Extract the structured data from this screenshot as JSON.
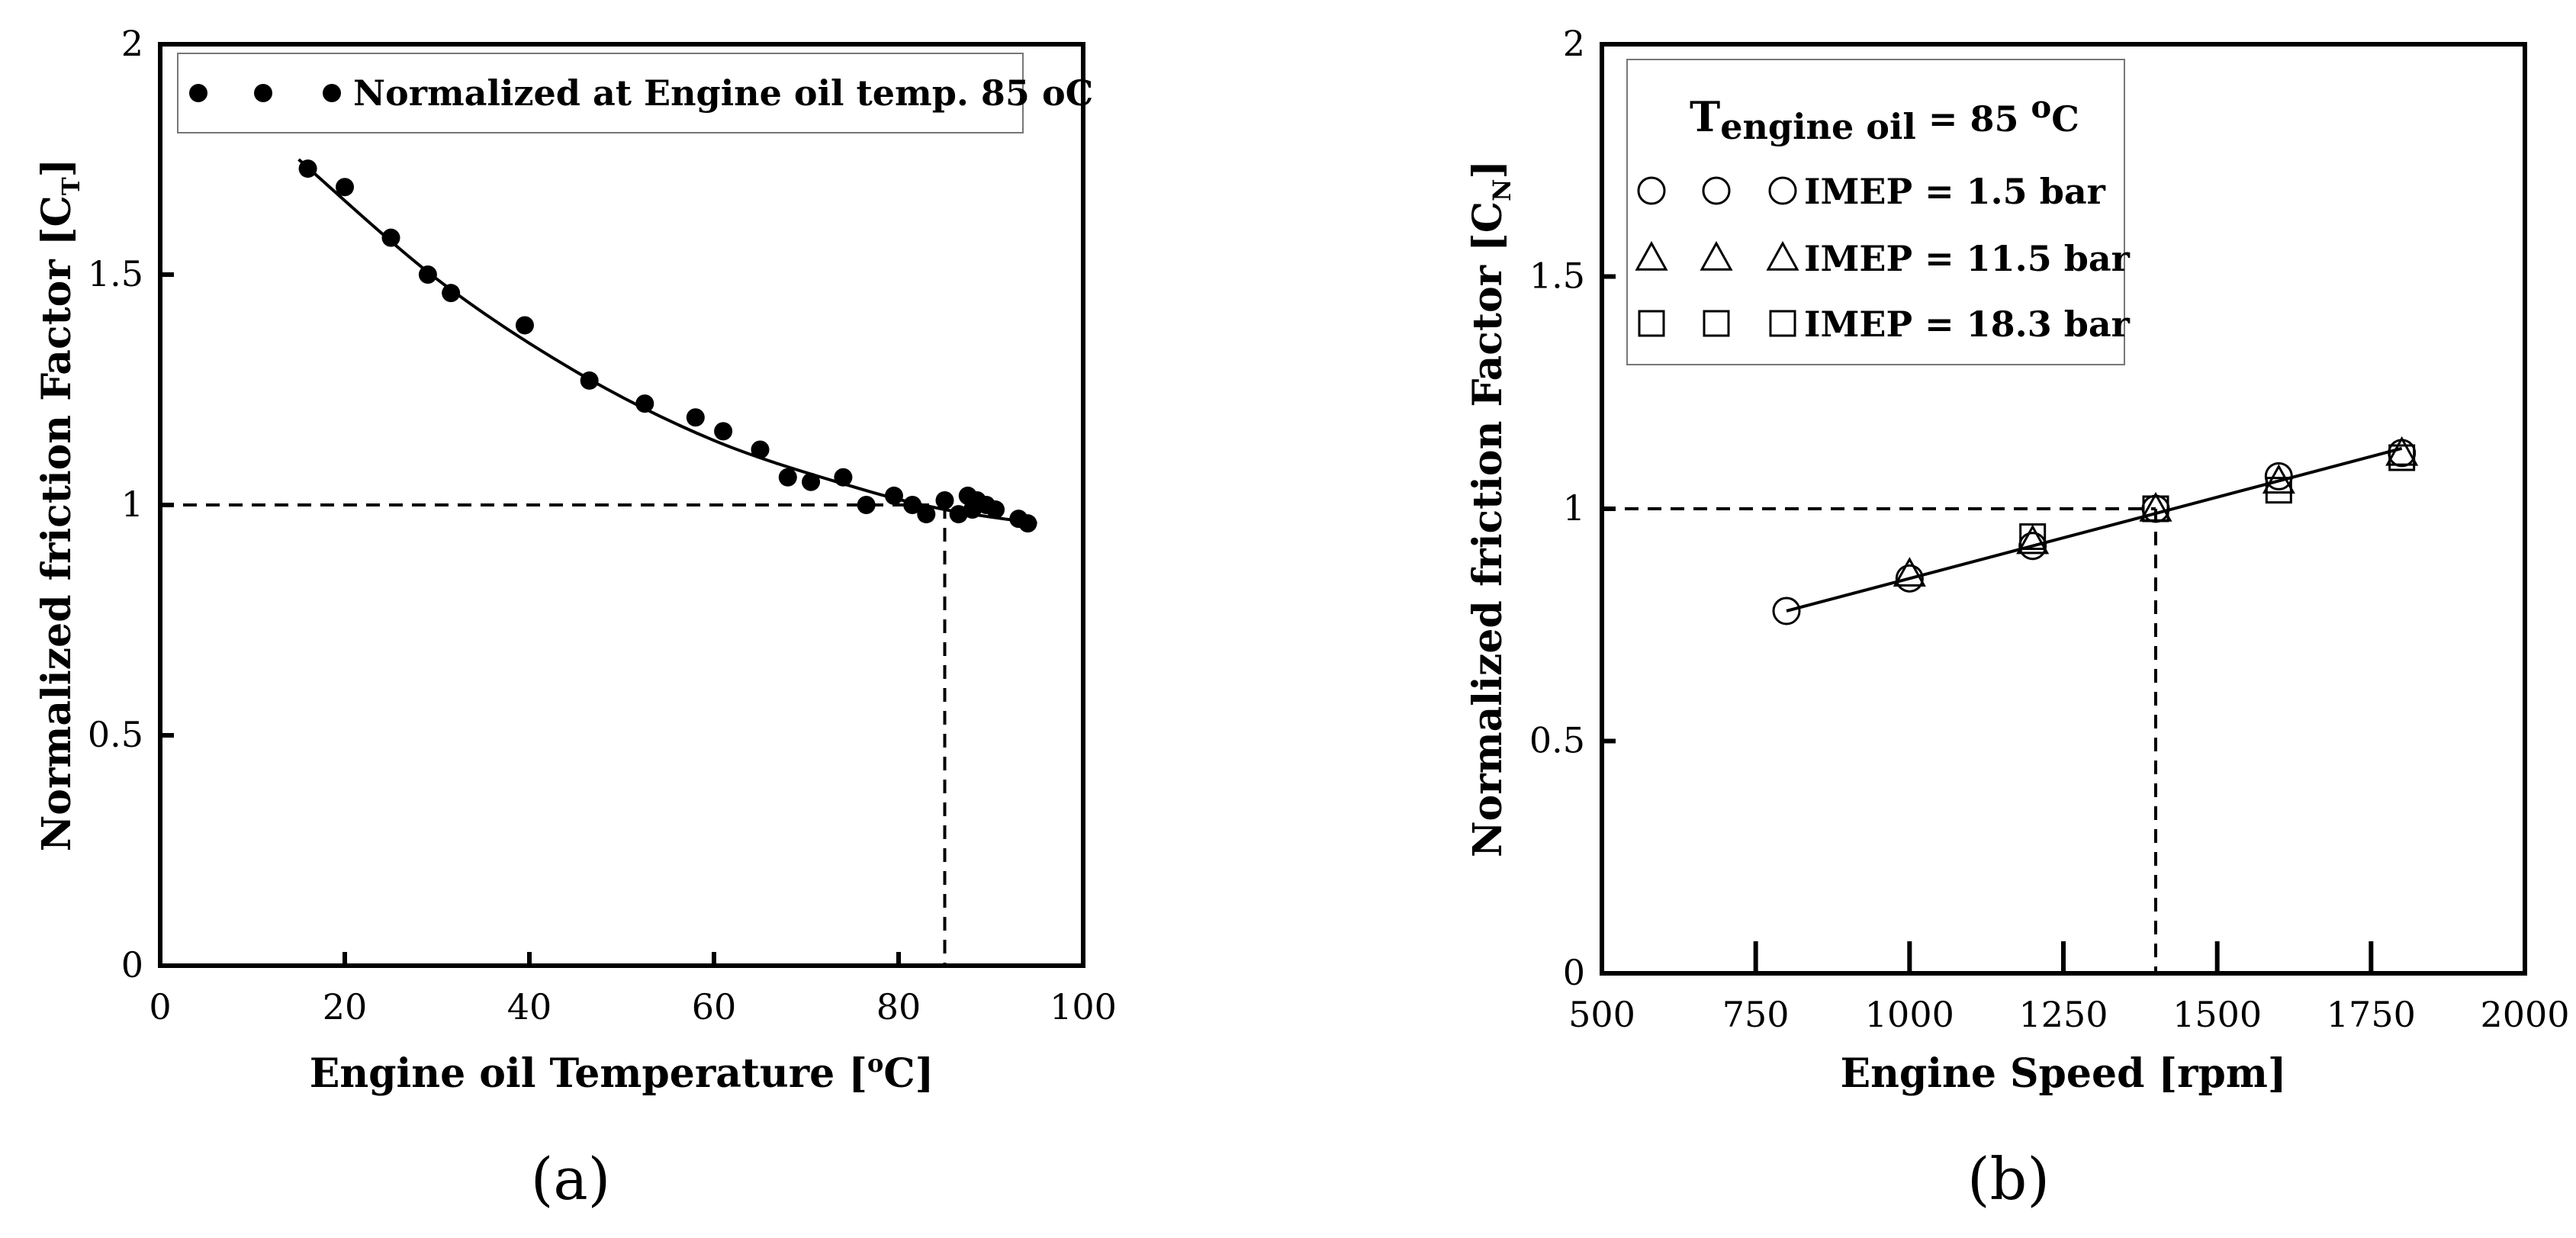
{
  "chart_data": [
    {
      "panel": "(a)",
      "type": "scatter",
      "xlabel": {
        "main": "Engine oil Temperature [",
        "sup": "o",
        "unit": "C]"
      },
      "ylabel": {
        "main": "Normalized friction Factor [C",
        "sub": "T",
        "end": "]"
      },
      "xlim": [
        0,
        100
      ],
      "ylim": [
        0,
        2
      ],
      "xticks": [
        0,
        20,
        40,
        60,
        80,
        100
      ],
      "yticks": [
        0,
        0.5,
        1,
        1.5,
        2
      ],
      "xtick_labels": [
        "0",
        "20",
        "40",
        "60",
        "80",
        "100"
      ],
      "ytick_labels": [
        "0",
        "0.5",
        "1",
        "1.5",
        "2"
      ],
      "legend": [
        "Normalized at Engine oil temp. 85 oC"
      ],
      "legend_position": "top-left",
      "reference_lines": {
        "x": 85,
        "y": 1
      },
      "series": [
        {
          "name": "Normalized at Engine oil temp. 85 oC",
          "marker": "filled-circle",
          "points": [
            [
              16,
              1.73
            ],
            [
              20,
              1.69
            ],
            [
              25,
              1.58
            ],
            [
              29,
              1.5
            ],
            [
              31.5,
              1.46
            ],
            [
              39.5,
              1.39
            ],
            [
              46.5,
              1.27
            ],
            [
              52.5,
              1.22
            ],
            [
              58,
              1.19
            ],
            [
              61,
              1.16
            ],
            [
              65,
              1.12
            ],
            [
              68,
              1.06
            ],
            [
              70.5,
              1.05
            ],
            [
              74,
              1.06
            ],
            [
              76.5,
              1.0
            ],
            [
              79.5,
              1.02
            ],
            [
              81.5,
              1.0
            ],
            [
              83,
              0.98
            ],
            [
              85,
              1.01
            ],
            [
              86.5,
              0.98
            ],
            [
              87.5,
              1.02
            ],
            [
              88,
              0.99
            ],
            [
              88.5,
              1.01
            ],
            [
              89.5,
              1.0
            ],
            [
              90.5,
              0.99
            ],
            [
              93,
              0.97
            ],
            [
              94,
              0.96
            ]
          ]
        }
      ],
      "fit_curve": {
        "type": "quadratic",
        "points": [
          [
            15,
            1.75
          ],
          [
            30,
            1.49
          ],
          [
            45,
            1.29
          ],
          [
            60,
            1.14
          ],
          [
            75,
            1.04
          ],
          [
            85,
            0.99
          ],
          [
            95,
            0.96
          ]
        ]
      }
    },
    {
      "panel": "(b)",
      "type": "scatter",
      "xlabel": {
        "main": "Engine Speed [rpm]"
      },
      "ylabel": {
        "main": "Normalized friction Factor [C",
        "sub": "N",
        "end": "]"
      },
      "xlim": [
        500,
        2000
      ],
      "ylim": [
        0,
        2
      ],
      "xticks": [
        500,
        750,
        1000,
        1250,
        1500,
        1750,
        2000
      ],
      "yticks": [
        0,
        0.5,
        1,
        1.5,
        2
      ],
      "xtick_labels": [
        "500",
        "750",
        "1000",
        "1250",
        "1500",
        "1750",
        "2000"
      ],
      "ytick_labels": [
        "0",
        "0.5",
        "1",
        "1.5",
        "2"
      ],
      "legend_title": {
        "main": "T",
        "sub": "engine oil",
        "rest": " = 85 ",
        "sup": "o",
        "end": "C"
      },
      "legend": [
        "IMEP = 1.5 bar",
        "IMEP = 11.5 bar",
        "IMEP = 18.3 bar"
      ],
      "legend_position": "top-left",
      "reference_lines": {
        "x": 1400,
        "y": 1
      },
      "series": [
        {
          "name": "IMEP = 1.5 bar",
          "marker": "circle",
          "points": [
            [
              800,
              0.78
            ],
            [
              1000,
              0.85
            ],
            [
              1200,
              0.92
            ],
            [
              1400,
              1.0
            ],
            [
              1600,
              1.07
            ],
            [
              1800,
              1.12
            ]
          ]
        },
        {
          "name": "IMEP = 11.5 bar",
          "marker": "triangle",
          "points": [
            [
              1000,
              0.86
            ],
            [
              1200,
              0.93
            ],
            [
              1400,
              1.0
            ],
            [
              1600,
              1.06
            ],
            [
              1800,
              1.12
            ]
          ]
        },
        {
          "name": "IMEP = 18.3 bar",
          "marker": "square",
          "points": [
            [
              1200,
              0.94
            ],
            [
              1400,
              1.0
            ],
            [
              1600,
              1.04
            ],
            [
              1800,
              1.11
            ]
          ]
        }
      ],
      "fit_line": {
        "points": [
          [
            800,
            0.78
          ],
          [
            1800,
            1.13
          ]
        ]
      }
    }
  ]
}
